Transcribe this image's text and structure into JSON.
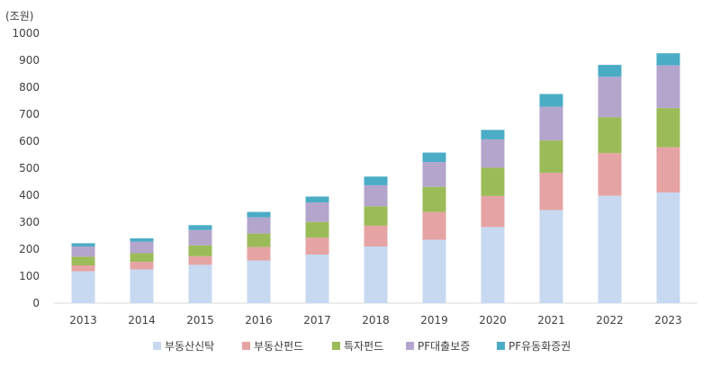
{
  "chart_data": {
    "type": "bar",
    "stacked": true,
    "unit_label": "(조원)",
    "title": "",
    "xlabel": "",
    "ylabel": "",
    "ylim": [
      0,
      1000
    ],
    "yticks": [
      0,
      100,
      200,
      300,
      400,
      500,
      600,
      700,
      800,
      900,
      1000
    ],
    "grid": false,
    "legend_position": "bottom",
    "categories": [
      "2013",
      "2014",
      "2015",
      "2016",
      "2017",
      "2018",
      "2019",
      "2020",
      "2021",
      "2022",
      "2023"
    ],
    "series": [
      {
        "name": "부동산신탁",
        "color": "#c6d9f1",
        "values": [
          118,
          125,
          142,
          158,
          180,
          210,
          235,
          282,
          345,
          398,
          410
        ]
      },
      {
        "name": "부동산펀드",
        "color": "#e6a3a3",
        "values": [
          22,
          28,
          32,
          50,
          63,
          77,
          103,
          115,
          138,
          158,
          168
        ]
      },
      {
        "name": "특자펀드",
        "color": "#9bbb59",
        "values": [
          32,
          32,
          40,
          50,
          58,
          72,
          93,
          105,
          120,
          133,
          145
        ]
      },
      {
        "name": "PF대출보증",
        "color": "#b4a5cc",
        "values": [
          38,
          43,
          57,
          60,
          72,
          78,
          92,
          105,
          125,
          150,
          158
        ]
      },
      {
        "name": "PF유동화증권",
        "color": "#4bacc6",
        "values": [
          12,
          12,
          18,
          20,
          22,
          32,
          35,
          35,
          47,
          44,
          45
        ]
      }
    ]
  }
}
